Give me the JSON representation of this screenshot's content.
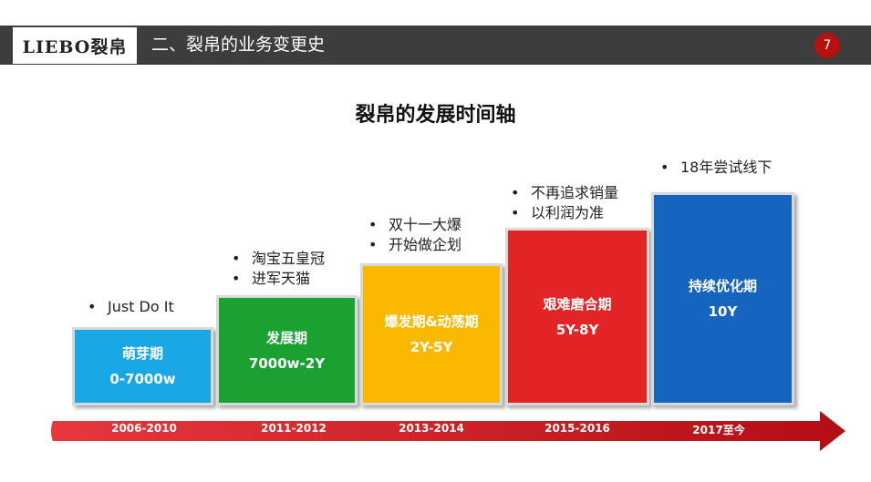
{
  "header": {
    "logo": "LIEBO裂帛",
    "section_title": "二、裂帛的业务变更史",
    "page_number": "7"
  },
  "title": "裂帛的发展时间轴",
  "stages": [
    {
      "name": "萌芽期",
      "duration": "0-7000w",
      "year": "2006-2010",
      "color": "#1aa7e6",
      "bullets": [
        "Just Do It"
      ]
    },
    {
      "name": "发展期",
      "duration": "7000w-2Y",
      "year": "2011-2012",
      "color": "#1aa132",
      "bullets": [
        "淘宝五皇冠",
        "进军天猫"
      ]
    },
    {
      "name": "爆发期&动荡期",
      "duration": "2Y-5Y",
      "year": "2013-2014",
      "color": "#fbb800",
      "bullets": [
        "双十一大爆",
        "开始做企划"
      ]
    },
    {
      "name": "艰难磨合期",
      "duration": "5Y-8Y",
      "year": "2015-2016",
      "color": "#e32426",
      "bullets": [
        "不再追求销量",
        "以利润为准"
      ]
    },
    {
      "name": "持续优化期",
      "duration": "10Y",
      "year": "2017至今",
      "color": "#1565c0",
      "bullets": [
        "18年尝试线下"
      ]
    }
  ],
  "colors": {
    "header_bg": "#3d3d3d",
    "accent_red": "#b80f0f",
    "arrow": "#c8141b"
  }
}
